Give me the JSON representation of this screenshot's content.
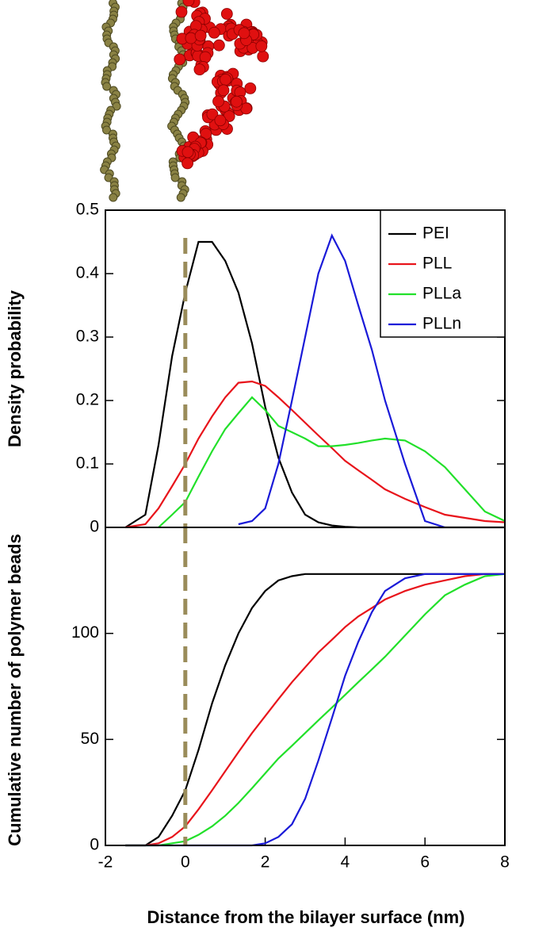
{
  "chart_data": [
    {
      "type": "line",
      "ylabel": "Density probability",
      "x": [
        -1.5,
        -1,
        -0.67,
        -0.33,
        0,
        0.33,
        0.67,
        1,
        1.33,
        1.67,
        2,
        2.33,
        2.67,
        3,
        3.33,
        3.67,
        4,
        4.33,
        4.67,
        5,
        5.5,
        6,
        6.5,
        7,
        7.5,
        8
      ],
      "series": [
        {
          "name": "PEI",
          "color": "#000000",
          "values": [
            0,
            0.02,
            0.13,
            0.27,
            0.37,
            0.45,
            0.45,
            0.42,
            0.37,
            0.29,
            0.19,
            0.11,
            0.055,
            0.02,
            0.008,
            0.003,
            0.001,
            0,
            0,
            0,
            0,
            0,
            0,
            0,
            0,
            0
          ]
        },
        {
          "name": "PLL",
          "color": "#e8141b",
          "values": [
            0,
            0.005,
            0.03,
            0.065,
            0.1,
            0.14,
            0.175,
            0.205,
            0.228,
            0.23,
            0.223,
            0.205,
            0.185,
            0.165,
            0.145,
            0.125,
            0.105,
            0.09,
            0.075,
            0.06,
            0.045,
            0.032,
            0.02,
            0.015,
            0.01,
            0.008
          ]
        },
        {
          "name": "PLLa",
          "color": "#22e02a",
          "values": [
            null,
            null,
            0,
            0.02,
            0.04,
            0.08,
            0.12,
            0.155,
            0.18,
            0.205,
            0.185,
            0.16,
            0.15,
            0.14,
            0.128,
            0.128,
            0.13,
            0.133,
            0.137,
            0.14,
            0.137,
            0.12,
            0.095,
            0.06,
            0.025,
            0.01
          ]
        },
        {
          "name": "PLLn",
          "color": "#1a1ad8",
          "values": [
            null,
            null,
            null,
            null,
            null,
            null,
            null,
            null,
            0.005,
            0.01,
            0.03,
            0.1,
            0.2,
            0.3,
            0.4,
            0.46,
            0.42,
            0.35,
            0.28,
            0.2,
            0.1,
            0.01,
            0,
            null,
            null,
            null
          ]
        }
      ],
      "xlim": [
        -2,
        8
      ],
      "ylim": [
        0,
        0.5
      ],
      "yticks": [
        0,
        0.1,
        0.2,
        0.3,
        0.4,
        0.5
      ],
      "reference_line_x": 0,
      "legend": "top-right"
    },
    {
      "type": "line",
      "ylabel": "Cumulative number of polymer beads",
      "xlabel": "Distance from the bilayer surface (nm)",
      "x": [
        -1.5,
        -1,
        -0.67,
        -0.33,
        0,
        0.33,
        0.67,
        1,
        1.33,
        1.67,
        2,
        2.33,
        2.67,
        3,
        3.33,
        3.67,
        4,
        4.33,
        4.67,
        5,
        5.5,
        6,
        6.5,
        7,
        7.5,
        8
      ],
      "series": [
        {
          "name": "PEI",
          "color": "#000000",
          "values": [
            0,
            0,
            4,
            14,
            26,
            45,
            67,
            85,
            100,
            112,
            120,
            125,
            127,
            128,
            128,
            128,
            128,
            128,
            128,
            128,
            128,
            128,
            128,
            128,
            128,
            128
          ]
        },
        {
          "name": "PLL",
          "color": "#e8141b",
          "values": [
            0,
            0,
            1,
            4,
            9,
            17,
            26,
            35,
            44,
            53,
            61,
            69,
            77,
            84,
            91,
            97,
            103,
            108,
            112,
            116,
            120,
            123,
            125,
            127,
            128,
            128
          ]
        },
        {
          "name": "PLLa",
          "color": "#22e02a",
          "values": [
            0,
            0,
            0,
            1,
            2,
            5,
            9,
            14,
            20,
            27,
            34,
            41,
            47,
            53,
            59,
            65,
            71,
            77,
            83,
            89,
            99,
            109,
            118,
            123,
            127,
            128
          ]
        },
        {
          "name": "PLLn",
          "color": "#1a1ad8",
          "values": [
            0,
            0,
            0,
            0,
            0,
            0,
            0,
            0,
            0,
            0,
            1,
            4,
            10,
            22,
            40,
            60,
            80,
            96,
            110,
            120,
            126,
            128,
            128,
            128,
            128,
            128
          ]
        }
      ],
      "xlim": [
        -2,
        8
      ],
      "xticks": [
        -2,
        0,
        2,
        4,
        6,
        8
      ],
      "ylim": [
        0,
        150
      ],
      "yticks": [
        0,
        50,
        100
      ],
      "reference_line_x": 0
    }
  ]
}
